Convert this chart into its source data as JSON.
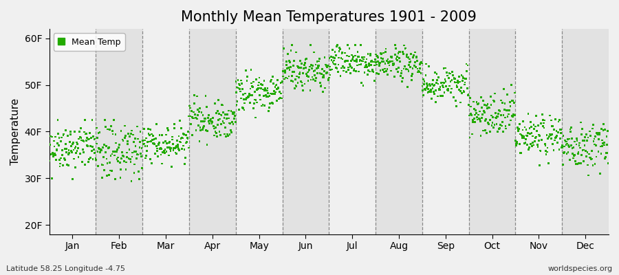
{
  "title": "Monthly Mean Temperatures 1901 - 2009",
  "ylabel": "Temperature",
  "xlabel": "",
  "ytick_labels": [
    "20F",
    "30F",
    "40F",
    "50F",
    "60F"
  ],
  "ytick_values": [
    20,
    30,
    40,
    50,
    60
  ],
  "ylim": [
    18,
    62
  ],
  "months": [
    "Jan",
    "Feb",
    "Mar",
    "Apr",
    "May",
    "Jun",
    "Jul",
    "Aug",
    "Sep",
    "Oct",
    "Nov",
    "Dec"
  ],
  "dot_color": "#22aa00",
  "dot_size": 4,
  "background_color": "#f0f0f0",
  "plot_bg_color": "#f0f0f0",
  "alt_band_color": "#e2e2e2",
  "title_fontsize": 15,
  "axis_fontsize": 11,
  "tick_fontsize": 10,
  "legend_label": "Mean Temp",
  "subtitle_left": "Latitude 58.25 Longitude -4.75",
  "subtitle_right": "worldspecies.org",
  "monthly_mean_F": [
    36.5,
    35.5,
    37.5,
    42.5,
    48.5,
    53.0,
    55.0,
    54.5,
    50.0,
    44.0,
    39.0,
    37.0
  ],
  "monthly_std_F": [
    2.5,
    3.0,
    2.0,
    2.0,
    2.0,
    2.0,
    1.8,
    1.8,
    2.0,
    2.2,
    2.2,
    2.5
  ],
  "monthly_min_F": [
    28.0,
    27.0,
    32.0,
    37.0,
    43.0,
    48.0,
    49.0,
    49.5,
    44.0,
    37.5,
    32.0,
    29.0
  ],
  "monthly_max_F": [
    42.5,
    42.5,
    43.5,
    49.5,
    55.5,
    58.5,
    58.5,
    58.5,
    54.5,
    51.5,
    46.5,
    42.5
  ],
  "n_years": 109,
  "year_start": 1901,
  "seed": 42
}
